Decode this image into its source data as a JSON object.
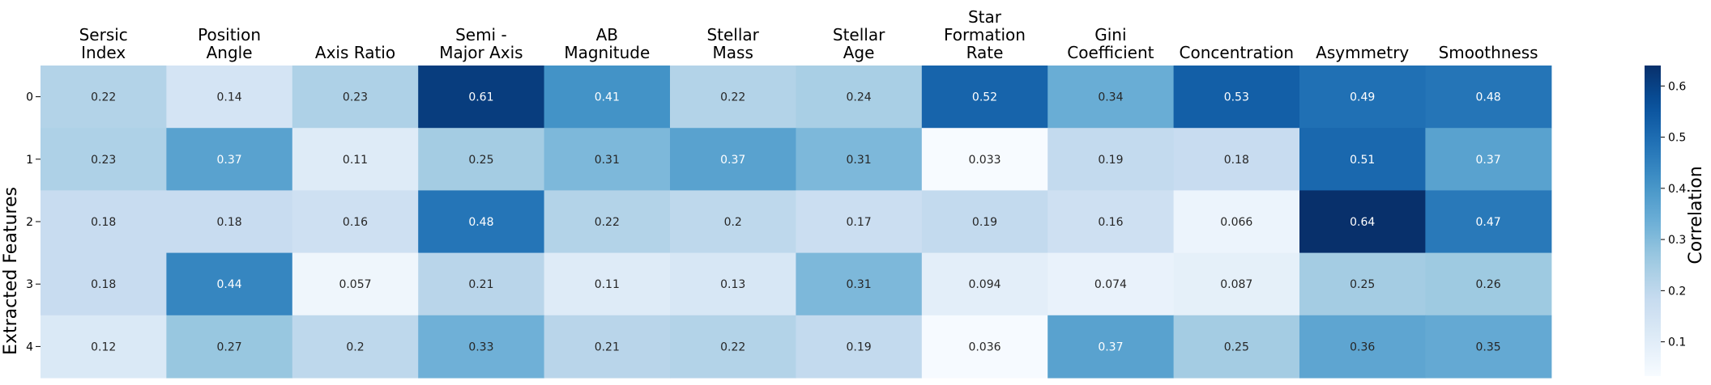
{
  "chart_data": {
    "type": "heatmap",
    "ylabel": "Extracted Features",
    "colorbar_label": "Correlation",
    "colormap": "Blues",
    "column_labels": [
      [
        "Sersic",
        "Index"
      ],
      [
        "Position",
        "Angle"
      ],
      [
        "Axis Ratio"
      ],
      [
        "Semi -",
        "Major Axis"
      ],
      [
        "AB",
        "Magnitude"
      ],
      [
        "Stellar",
        "Mass"
      ],
      [
        "Stellar",
        "Age"
      ],
      [
        "Star",
        "Formation",
        "Rate"
      ],
      [
        "Gini",
        "Coefficient"
      ],
      [
        "Concentration"
      ],
      [
        "Asymmetry"
      ],
      [
        "Smoothness"
      ]
    ],
    "row_labels": [
      "0",
      "1",
      "2",
      "3",
      "4"
    ],
    "values": [
      [
        0.22,
        0.14,
        0.23,
        0.61,
        0.41,
        0.22,
        0.24,
        0.52,
        0.34,
        0.53,
        0.49,
        0.48
      ],
      [
        0.23,
        0.37,
        0.11,
        0.25,
        0.31,
        0.37,
        0.31,
        0.033,
        0.19,
        0.18,
        0.51,
        0.37
      ],
      [
        0.18,
        0.18,
        0.16,
        0.48,
        0.22,
        0.2,
        0.17,
        0.19,
        0.16,
        0.066,
        0.64,
        0.47
      ],
      [
        0.18,
        0.44,
        0.057,
        0.21,
        0.11,
        0.13,
        0.31,
        0.094,
        0.074,
        0.087,
        0.25,
        0.26
      ],
      [
        0.12,
        0.27,
        0.2,
        0.33,
        0.21,
        0.22,
        0.19,
        0.036,
        0.37,
        0.25,
        0.36,
        0.35
      ]
    ],
    "value_labels": [
      [
        "0.22",
        "0.14",
        "0.23",
        "0.61",
        "0.41",
        "0.22",
        "0.24",
        "0.52",
        "0.34",
        "0.53",
        "0.49",
        "0.48"
      ],
      [
        "0.23",
        "0.37",
        "0.11",
        "0.25",
        "0.31",
        "0.37",
        "0.31",
        "0.033",
        "0.19",
        "0.18",
        "0.51",
        "0.37"
      ],
      [
        "0.18",
        "0.18",
        "0.16",
        "0.48",
        "0.22",
        "0.2",
        "0.17",
        "0.19",
        "0.16",
        "0.066",
        "0.64",
        "0.47"
      ],
      [
        "0.18",
        "0.44",
        "0.057",
        "0.21",
        "0.11",
        "0.13",
        "0.31",
        "0.094",
        "0.074",
        "0.087",
        "0.25",
        "0.26"
      ],
      [
        "0.12",
        "0.27",
        "0.2",
        "0.33",
        "0.21",
        "0.22",
        "0.19",
        "0.036",
        "0.37",
        "0.25",
        "0.36",
        "0.35"
      ]
    ],
    "color_range": [
      0.033,
      0.64
    ],
    "colorbar_ticks": [
      0.1,
      0.2,
      0.3,
      0.4,
      0.5,
      0.6
    ],
    "colorbar_tick_labels": [
      "0.1",
      "0.2",
      "0.3",
      "0.4",
      "0.5",
      "0.6"
    ],
    "column_labels_position": "top",
    "colorbar_position": "right"
  }
}
